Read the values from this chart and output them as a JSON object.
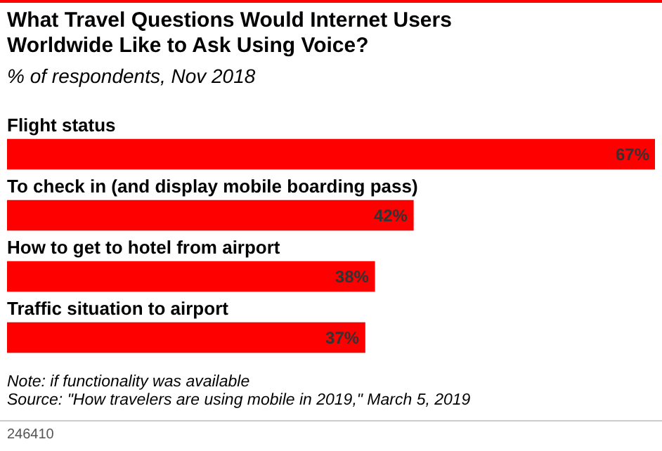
{
  "chart_data": {
    "type": "bar",
    "orientation": "horizontal",
    "title": "What Travel Questions Would Internet Users Worldwide Like to Ask Using Voice?",
    "subtitle": "% of respondents, Nov 2018",
    "categories": [
      "Flight status",
      "To check in (and display mobile boarding pass)",
      "How to get to hotel from airport",
      "Traffic situation to airport"
    ],
    "values": [
      67,
      42,
      38,
      37
    ],
    "value_labels": [
      "67%",
      "42%",
      "38%",
      "37%"
    ],
    "color": "#ff0000",
    "annotations": [
      "Note: if functionality was available",
      "Source: \"How travelers are using mobile in 2019,\" March 5, 2019",
      "246410"
    ]
  }
}
